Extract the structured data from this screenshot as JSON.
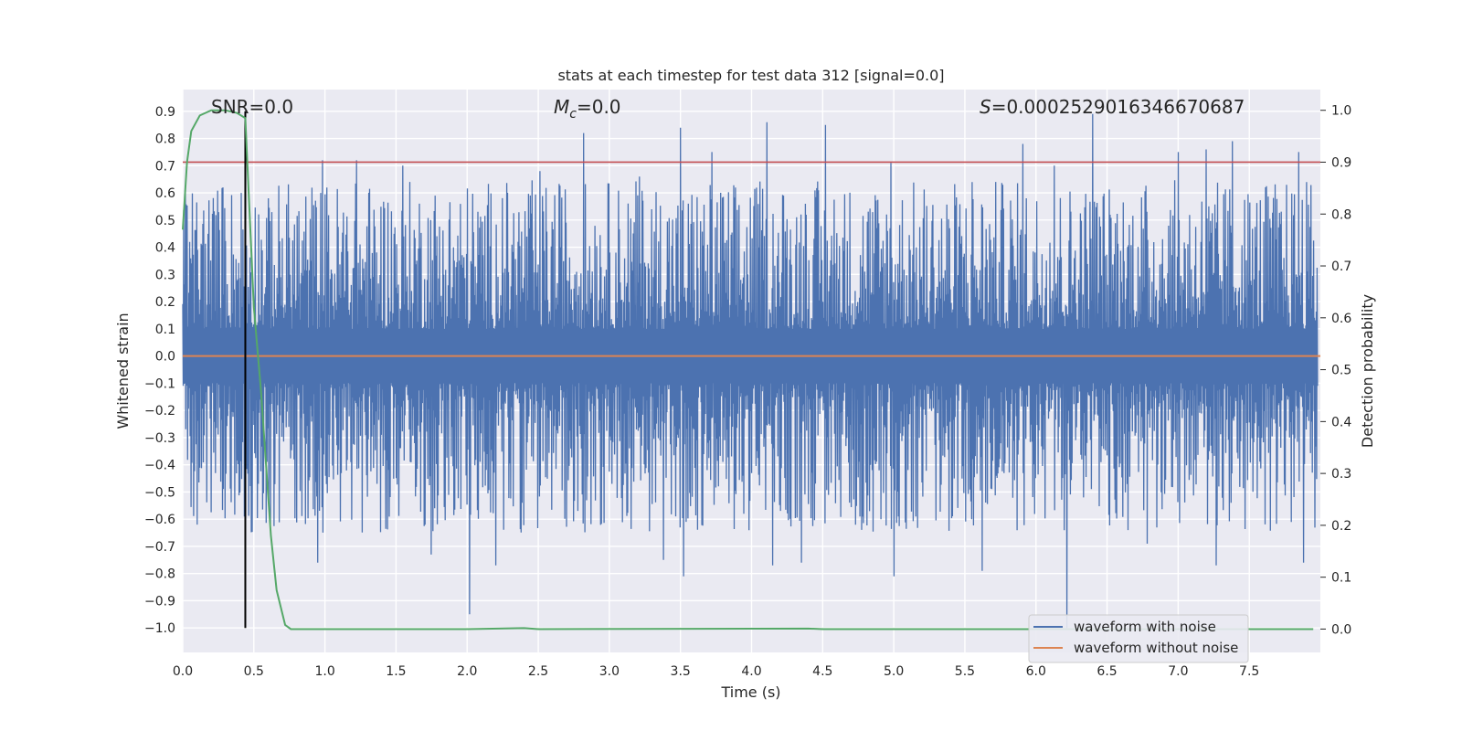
{
  "chart_data": {
    "type": "line",
    "title": "stats at each timestep for test data 312 [signal=0.0]",
    "xlabel": "Time (s)",
    "ylabel": "Whitened strain",
    "y2label": "Detection probability",
    "xlim": [
      0.0,
      8.0
    ],
    "ylim": [
      -1.09,
      0.98
    ],
    "y2lim": [
      -0.045,
      1.04
    ],
    "xticks": [
      0.0,
      0.5,
      1.0,
      1.5,
      2.0,
      2.5,
      3.0,
      3.5,
      4.0,
      4.5,
      5.0,
      5.5,
      6.0,
      6.5,
      7.0,
      7.5
    ],
    "xtick_labels": [
      "0.0",
      "0.5",
      "1.0",
      "1.5",
      "2.0",
      "2.5",
      "3.0",
      "3.5",
      "4.0",
      "4.5",
      "5.0",
      "5.5",
      "6.0",
      "6.5",
      "7.0",
      "7.5"
    ],
    "yticks": [
      0.9,
      0.8,
      0.7,
      0.6,
      0.5,
      0.4,
      0.3,
      0.2,
      0.1,
      0.0,
      -0.1,
      -0.2,
      -0.3,
      -0.4,
      -0.5,
      -0.6,
      -0.7,
      -0.8,
      -0.9,
      -1.0
    ],
    "ytick_labels": [
      "0.9",
      "0.8",
      "0.7",
      "0.6",
      "0.5",
      "0.4",
      "0.3",
      "0.2",
      "0.1",
      "0.0",
      "−0.1",
      "−0.2",
      "−0.3",
      "−0.4",
      "−0.5",
      "−0.6",
      "−0.7",
      "−0.8",
      "−0.9",
      "−1.0"
    ],
    "y2ticks": [
      1.0,
      0.9,
      0.8,
      0.7,
      0.6,
      0.5,
      0.4,
      0.3,
      0.2,
      0.1,
      0.0
    ],
    "y2tick_labels": [
      "1.0",
      "0.9",
      "0.8",
      "0.7",
      "0.6",
      "0.5",
      "0.4",
      "0.3",
      "0.2",
      "0.1",
      "0.0"
    ],
    "grid": true,
    "legend_position": "lower-right",
    "annotations": {
      "snr_label": "SNR=0.0",
      "mc_symbol": "M",
      "mc_sub": "c",
      "mc_value": "=0.0",
      "s_symbol": "S",
      "s_value": "=0.000252901634667068​7"
    },
    "series": [
      {
        "name": "waveform with noise",
        "axis": "left",
        "color": "#4c72b0",
        "description_kind": "noise",
        "envelope": {
          "typical_max": 0.45,
          "typical_min": -0.45
        },
        "peaks": [
          {
            "x": 0.02,
            "y": 0.6
          },
          {
            "x": 0.1,
            "y": -0.62
          },
          {
            "x": 0.28,
            "y": 0.62
          },
          {
            "x": 0.41,
            "y": 0.6
          },
          {
            "x": 0.6,
            "y": 0.58
          },
          {
            "x": 0.95,
            "y": -0.76
          },
          {
            "x": 0.98,
            "y": 0.72
          },
          {
            "x": 1.22,
            "y": 0.72
          },
          {
            "x": 1.55,
            "y": 0.7
          },
          {
            "x": 1.75,
            "y": -0.73
          },
          {
            "x": 2.02,
            "y": -0.95
          },
          {
            "x": 2.2,
            "y": -0.77
          },
          {
            "x": 2.51,
            "y": 0.68
          },
          {
            "x": 2.82,
            "y": 0.82
          },
          {
            "x": 3.21,
            "y": 0.66
          },
          {
            "x": 3.38,
            "y": -0.75
          },
          {
            "x": 3.5,
            "y": 0.84
          },
          {
            "x": 3.52,
            "y": -0.81
          },
          {
            "x": 3.72,
            "y": 0.75
          },
          {
            "x": 4.11,
            "y": 0.86
          },
          {
            "x": 4.15,
            "y": -0.77
          },
          {
            "x": 4.35,
            "y": -0.76
          },
          {
            "x": 4.52,
            "y": 0.85
          },
          {
            "x": 4.98,
            "y": 0.71
          },
          {
            "x": 5.0,
            "y": -0.81
          },
          {
            "x": 5.55,
            "y": 0.64
          },
          {
            "x": 5.62,
            "y": -0.79
          },
          {
            "x": 5.91,
            "y": 0.78
          },
          {
            "x": 6.13,
            "y": 0.7
          },
          {
            "x": 6.22,
            "y": -1.0
          },
          {
            "x": 6.4,
            "y": 0.89
          },
          {
            "x": 6.78,
            "y": -0.69
          },
          {
            "x": 7.0,
            "y": 0.75
          },
          {
            "x": 7.2,
            "y": 0.76
          },
          {
            "x": 7.27,
            "y": -0.77
          },
          {
            "x": 7.38,
            "y": 0.79
          },
          {
            "x": 7.85,
            "y": 0.75
          },
          {
            "x": 7.88,
            "y": -0.76
          }
        ]
      },
      {
        "name": "waveform without noise",
        "axis": "left",
        "color": "#dd8452",
        "x": [
          0.0,
          8.0
        ],
        "y": [
          0.0,
          0.0
        ]
      },
      {
        "name": "",
        "axis": "right",
        "color": "#55a868",
        "x": [
          0.0,
          0.03,
          0.06,
          0.12,
          0.2,
          0.3,
          0.38,
          0.44,
          0.5,
          0.55,
          0.58,
          0.62,
          0.66,
          0.72,
          0.76,
          0.85,
          1.0,
          2.0,
          2.4,
          2.5,
          4.4,
          4.5,
          7.95
        ],
        "y": [
          0.77,
          0.9,
          0.96,
          0.99,
          1.0,
          1.0,
          0.995,
          0.985,
          0.62,
          0.46,
          0.34,
          0.18,
          0.075,
          0.008,
          0.0,
          0.0,
          0.0,
          0.0,
          0.002,
          0.0,
          0.001,
          0.0,
          0.0
        ]
      }
    ],
    "reference_lines": [
      {
        "orientation": "horizontal",
        "axis": "right",
        "value": 0.9,
        "color": "#c44e52"
      },
      {
        "orientation": "vertical",
        "value": 0.44,
        "ymin": -1.0,
        "ymax": 0.9,
        "color": "#000000"
      }
    ]
  }
}
